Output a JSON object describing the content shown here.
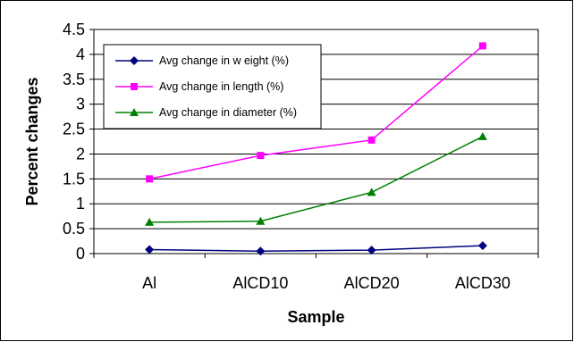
{
  "chart_data": {
    "type": "line",
    "categories": [
      "Al",
      "AlCD10",
      "AlCD20",
      "AlCD30"
    ],
    "series": [
      {
        "name": "Avg change in w eight  (%)",
        "values": [
          0.08,
          0.05,
          0.07,
          0.16
        ],
        "color": "#000080",
        "marker": "diamond"
      },
      {
        "name": "Avg change in length (%)",
        "values": [
          1.5,
          1.97,
          2.28,
          4.17
        ],
        "color": "#ff00ff",
        "marker": "square"
      },
      {
        "name": "Avg change in diameter (%)",
        "values": [
          0.63,
          0.65,
          1.23,
          2.35
        ],
        "color": "#008000",
        "marker": "triangle"
      }
    ],
    "xlabel": "Sample",
    "ylabel": "Percent changes",
    "ylim": [
      0,
      4.5
    ],
    "yticks": [
      "0",
      "0.5",
      "1",
      "1.5",
      "2",
      "2.5",
      "3",
      "3.5",
      "4",
      "4.5"
    ],
    "grid": true,
    "legend_position": "top-left"
  }
}
